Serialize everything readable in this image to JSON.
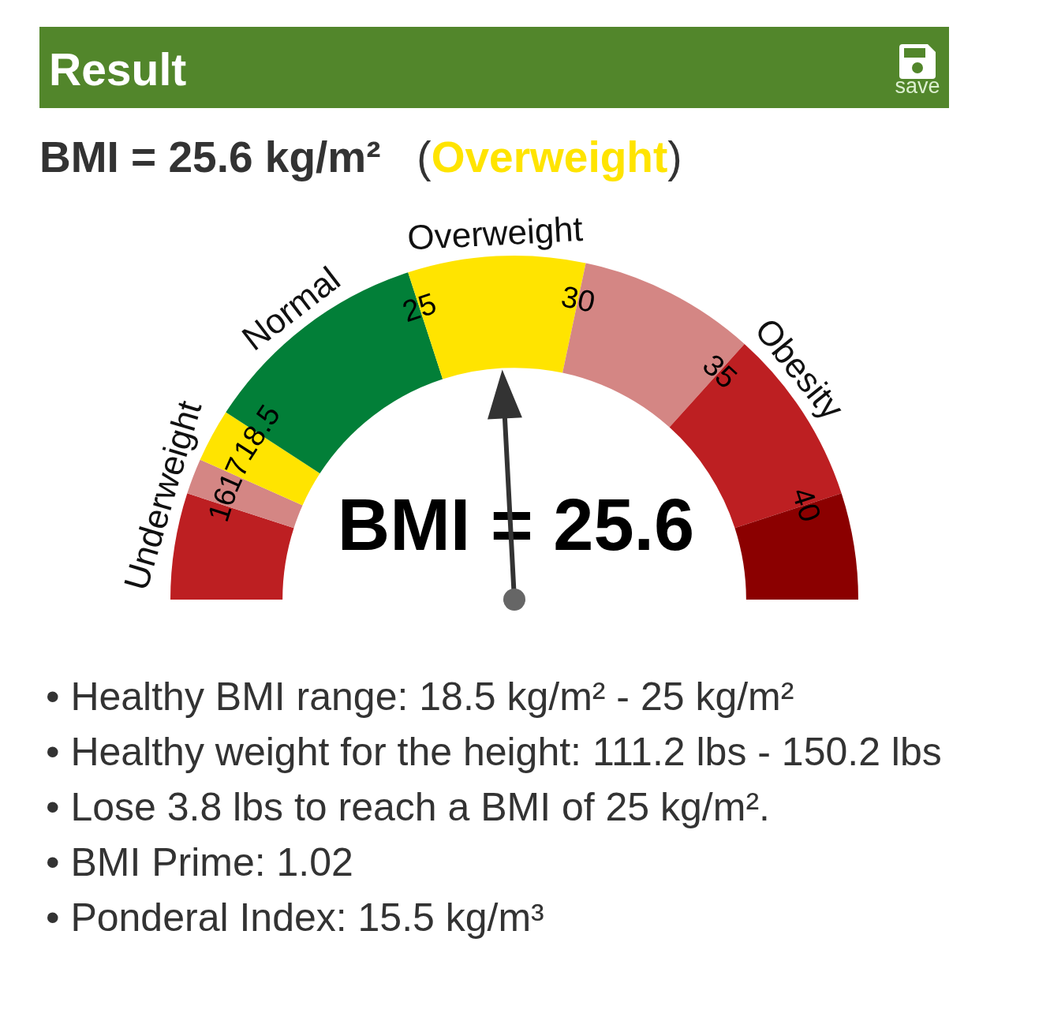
{
  "chart_data": {
    "type": "donut",
    "title": "Result",
    "subtitle": "BMI = 25.6 kg/m²   (Overweight)",
    "categories": [
      "Underweight",
      null,
      null,
      "Normal",
      "Overweight",
      "Obesity",
      null,
      null
    ],
    "values": [
      10,
      3.33,
      5,
      21.67,
      16.67,
      16.67,
      16.67,
      10
    ],
    "colors": [
      "#bd1f22",
      "#d48684",
      "#ffe400",
      "#027f38",
      "#ffe400",
      "#d48684",
      "#bd1f22",
      "#8b0000"
    ],
    "needle": "Overweight",
    "annotations": [
      "save",
      "16",
      "17",
      "18.5",
      "25",
      "30",
      "35",
      "40",
      "BMI = 25.6",
      "• Healthy BMI range: 18.5 kg/m² - 25 kg/m²",
      "• Healthy weight for the height: 111.2 lbs - 150.2 lbs",
      "• Lose 3.8 lbs to reach a BMI of 25 kg/m².",
      "• BMI Prime: 1.02",
      "• Ponderal Index: 15.5 kg/m³"
    ]
  }
}
